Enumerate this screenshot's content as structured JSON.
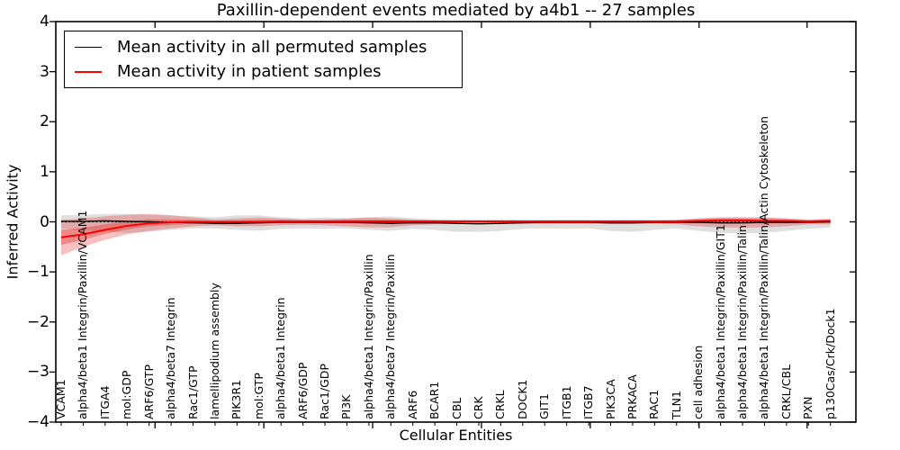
{
  "chart_data": {
    "type": "line",
    "title": "Paxillin-dependent events mediated by a4b1 -- 27 samples",
    "xlabel": "Cellular Entities",
    "ylabel": "Inferred Activity",
    "ylim": [
      -4,
      4
    ],
    "grid": false,
    "legend_position": "upper-left",
    "yticks": [
      {
        "value": 4,
        "label": "4"
      },
      {
        "value": 3,
        "label": "3"
      },
      {
        "value": 2,
        "label": "2"
      },
      {
        "value": 1,
        "label": "1"
      },
      {
        "value": 0,
        "label": "0"
      },
      {
        "value": -1,
        "label": "−1"
      },
      {
        "value": -2,
        "label": "−2"
      },
      {
        "value": -3,
        "label": "−3"
      },
      {
        "value": -4,
        "label": "−4"
      }
    ],
    "categories": [
      "VCAM1",
      "alpha4/beta1 Integrin/Paxillin/VCAM1",
      "ITGA4",
      "mol:GDP",
      "ARF6/GTP",
      "alpha4/beta7 Integrin",
      "Rac1/GTP",
      "lamellipodium assembly",
      "PIK3R1",
      "mol:GTP",
      "alpha4/beta1 Integrin",
      "ARF6/GDP",
      "Rac1/GDP",
      "PI3K",
      "alpha4/beta1 Integrin/Paxillin",
      "alpha4/beta7 Integrin/Paxillin",
      "ARF6",
      "BCAR1",
      "CBL",
      "CRK",
      "CRKL",
      "DOCK1",
      "GIT1",
      "ITGB1",
      "ITGB7",
      "PIK3CA",
      "PRKACA",
      "RAC1",
      "TLN1",
      "cell adhesion",
      "alpha4/beta1 Integrin/Paxillin/GIT1",
      "alpha4/beta1 Integrin/Paxillin/Talin",
      "alpha4/beta1 Integrin/Paxillin/Talin/Actin Cytoskeleton",
      "CRKL/CBL",
      "PXN",
      "p130Cas/Crk/Dock1"
    ],
    "series": [
      {
        "name": "Mean activity in all permuted samples",
        "color": "#000000",
        "values": [
          0.01,
          0.01,
          0.02,
          0.01,
          0.0,
          -0.01,
          -0.02,
          -0.03,
          -0.03,
          -0.02,
          -0.01,
          -0.01,
          -0.01,
          -0.01,
          -0.02,
          -0.03,
          -0.02,
          -0.02,
          -0.03,
          -0.04,
          -0.03,
          -0.02,
          -0.01,
          -0.01,
          -0.01,
          -0.02,
          -0.02,
          -0.01,
          -0.01,
          -0.01,
          -0.02,
          -0.02,
          -0.01,
          -0.01,
          -0.01,
          0.0
        ]
      },
      {
        "name": "Mean activity in patient samples",
        "color": "#ff0000",
        "values": [
          -0.31,
          -0.25,
          -0.16,
          -0.08,
          -0.03,
          -0.01,
          0.0,
          0.0,
          0.0,
          0.0,
          0.01,
          0.01,
          0.01,
          0.01,
          0.01,
          0.01,
          0.01,
          0.01,
          0.01,
          0.01,
          0.01,
          0.01,
          0.01,
          0.01,
          0.01,
          0.01,
          0.01,
          0.01,
          0.01,
          0.02,
          0.03,
          0.03,
          0.02,
          0.02,
          0.01,
          0.02
        ]
      }
    ],
    "bands": [
      {
        "name": "permuted samples spread",
        "color": "#808080",
        "opacity": 0.25,
        "upper": [
          0.13,
          0.14,
          0.16,
          0.16,
          0.14,
          0.13,
          0.11,
          0.09,
          0.13,
          0.13,
          0.09,
          0.07,
          0.09,
          0.07,
          0.09,
          0.11,
          0.07,
          0.05,
          0.05,
          0.05,
          0.05,
          0.04,
          0.04,
          0.05,
          0.04,
          0.04,
          0.05,
          0.04,
          0.04,
          0.07,
          0.09,
          0.09,
          0.09,
          0.07,
          0.05,
          0.07
        ],
        "lower": [
          -0.13,
          -0.16,
          -0.2,
          -0.22,
          -0.2,
          -0.16,
          -0.13,
          -0.13,
          -0.16,
          -0.18,
          -0.14,
          -0.13,
          -0.14,
          -0.13,
          -0.16,
          -0.18,
          -0.14,
          -0.16,
          -0.2,
          -0.2,
          -0.18,
          -0.14,
          -0.13,
          -0.14,
          -0.13,
          -0.18,
          -0.2,
          -0.16,
          -0.13,
          -0.18,
          -0.22,
          -0.23,
          -0.22,
          -0.18,
          -0.14,
          -0.11
        ]
      },
      {
        "name": "patient samples spread outer",
        "color": "#e53333",
        "opacity": 0.3,
        "upper": [
          0.04,
          0.07,
          0.11,
          0.14,
          0.16,
          0.13,
          0.09,
          0.05,
          0.07,
          0.09,
          0.07,
          0.05,
          0.05,
          0.07,
          0.09,
          0.07,
          0.05,
          0.04,
          0.03,
          0.03,
          0.03,
          0.03,
          0.03,
          0.03,
          0.03,
          0.03,
          0.03,
          0.03,
          0.04,
          0.07,
          0.09,
          0.09,
          0.09,
          0.07,
          0.04,
          0.05
        ],
        "lower": [
          -0.67,
          -0.5,
          -0.36,
          -0.25,
          -0.18,
          -0.13,
          -0.09,
          -0.07,
          -0.09,
          -0.09,
          -0.07,
          -0.06,
          -0.07,
          -0.09,
          -0.11,
          -0.11,
          -0.07,
          -0.05,
          -0.04,
          -0.04,
          -0.04,
          -0.04,
          -0.04,
          -0.04,
          -0.04,
          -0.04,
          -0.04,
          -0.04,
          -0.05,
          -0.09,
          -0.11,
          -0.12,
          -0.11,
          -0.09,
          -0.05,
          -0.05
        ]
      },
      {
        "name": "patient samples spread inner",
        "color": "#e02020",
        "opacity": 0.35,
        "upper": [
          -0.16,
          -0.12,
          -0.05,
          0.01,
          0.05,
          0.05,
          0.04,
          0.02,
          0.03,
          0.04,
          0.04,
          0.03,
          0.03,
          0.04,
          0.04,
          0.04,
          0.03,
          0.02,
          0.02,
          0.02,
          0.02,
          0.02,
          0.02,
          0.02,
          0.02,
          0.02,
          0.02,
          0.02,
          0.02,
          0.04,
          0.06,
          0.06,
          0.05,
          0.04,
          0.02,
          0.03
        ],
        "lower": [
          -0.46,
          -0.36,
          -0.24,
          -0.15,
          -0.09,
          -0.06,
          -0.04,
          -0.03,
          -0.04,
          -0.04,
          -0.02,
          -0.02,
          -0.02,
          -0.03,
          -0.04,
          -0.04,
          -0.02,
          -0.02,
          -0.01,
          -0.01,
          -0.01,
          -0.01,
          -0.01,
          -0.01,
          -0.01,
          -0.01,
          -0.01,
          -0.01,
          -0.02,
          -0.03,
          -0.03,
          -0.03,
          -0.03,
          -0.03,
          -0.02,
          -0.01
        ]
      }
    ],
    "reference_line": {
      "value": 0,
      "color": "#000000",
      "style": "dotted"
    }
  }
}
